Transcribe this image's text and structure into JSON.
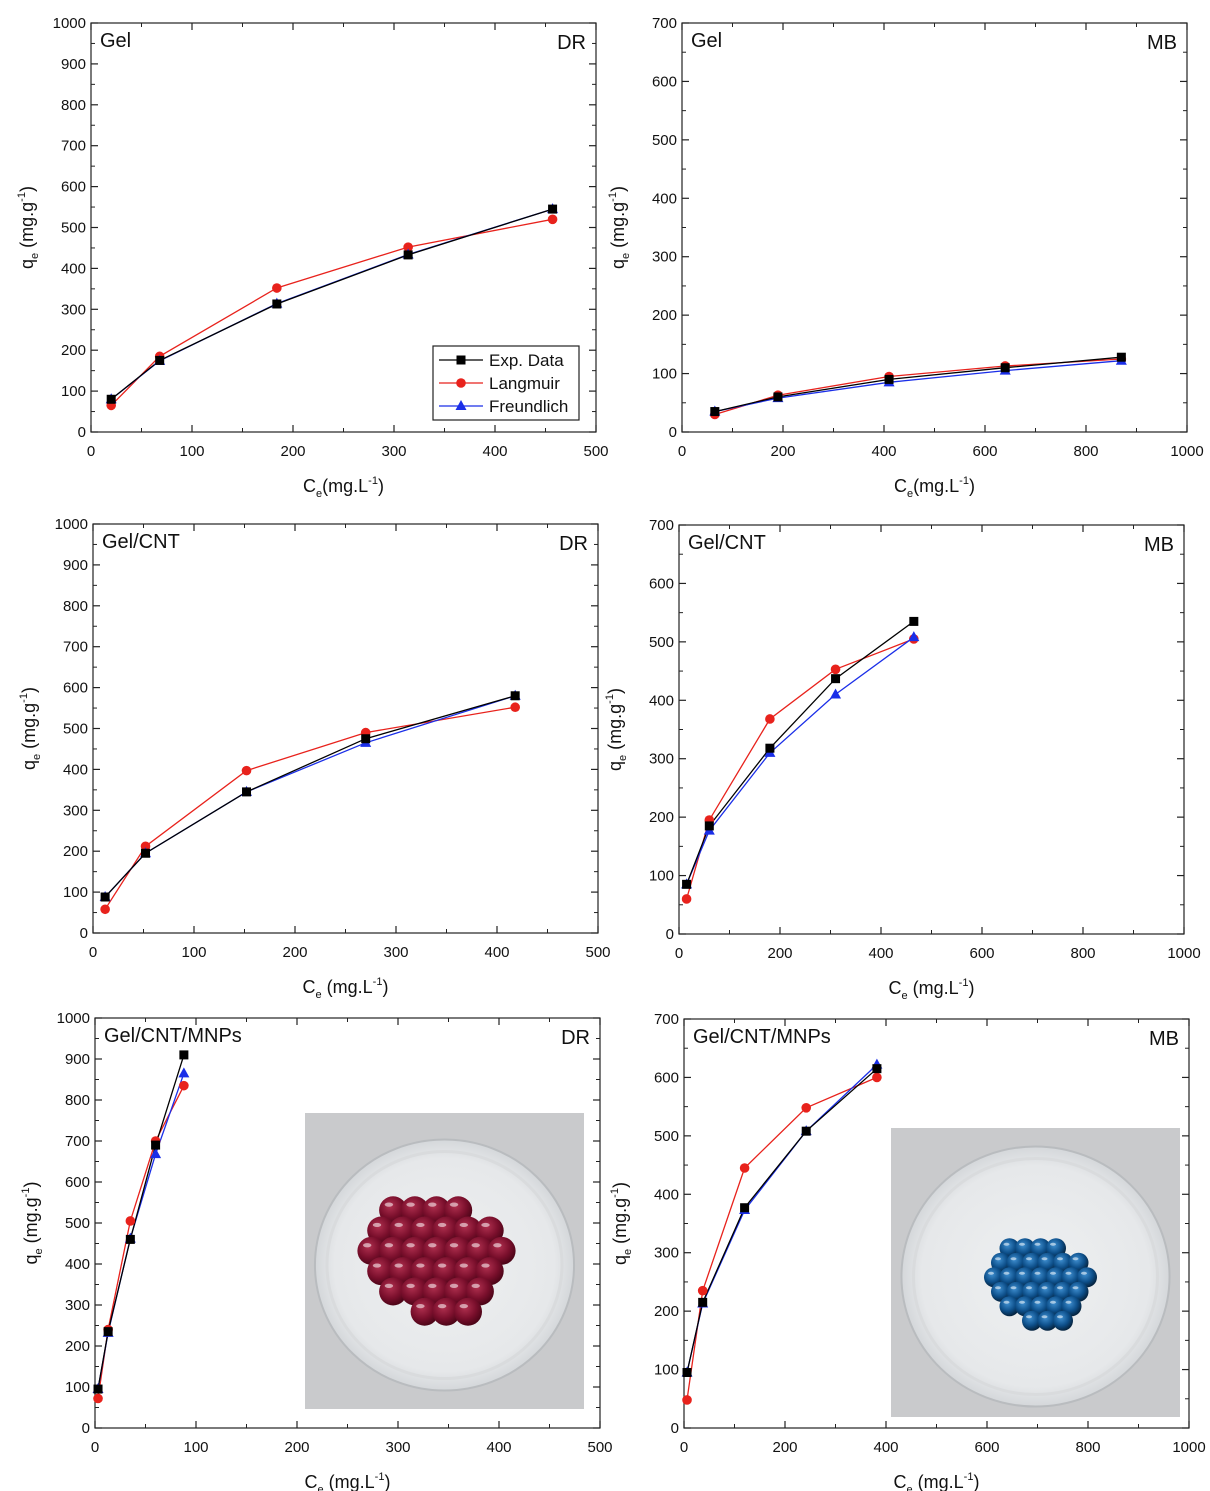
{
  "chart_data": [
    {
      "type": "line",
      "title": "Gel",
      "dye": "DR",
      "xlabel": "C_e(mg.L^-1)",
      "ylabel": "q_e (mg.g^-1)",
      "xlim": [
        0,
        500
      ],
      "ylim": [
        0,
        1000
      ],
      "xticks": [
        0,
        100,
        200,
        300,
        400,
        500
      ],
      "yticks": [
        0,
        100,
        200,
        300,
        400,
        500,
        600,
        700,
        800,
        900,
        1000
      ],
      "legend": "bottom-right",
      "series": [
        {
          "name": "Exp. Data",
          "color": "#000000",
          "marker": "square",
          "x": [
            20,
            68,
            184,
            314,
            457
          ],
          "y": [
            80,
            175,
            313,
            433,
            545
          ]
        },
        {
          "name": "Langmuir",
          "color": "#e8221c",
          "marker": "circle",
          "x": [
            20,
            68,
            184,
            314,
            457
          ],
          "y": [
            65,
            185,
            352,
            452,
            520
          ]
        },
        {
          "name": "Freundlich",
          "color": "#1a2ee8",
          "marker": "triangle",
          "x": [
            20,
            68,
            184,
            314,
            457
          ],
          "y": [
            80,
            174,
            314,
            434,
            545
          ]
        }
      ]
    },
    {
      "type": "line",
      "title": "Gel",
      "dye": "MB",
      "xlabel": "C_e(mg.L^-1)",
      "ylabel": "q_e (mg.g^-1)",
      "xlim": [
        0,
        1000
      ],
      "ylim": [
        0,
        700
      ],
      "xticks": [
        0,
        200,
        400,
        600,
        800,
        1000
      ],
      "yticks": [
        0,
        100,
        200,
        300,
        400,
        500,
        600,
        700
      ],
      "legend": "none",
      "series": [
        {
          "name": "Exp. Data",
          "color": "#000000",
          "marker": "square",
          "x": [
            65,
            190,
            410,
            640,
            870
          ],
          "y": [
            35,
            60,
            90,
            110,
            128
          ]
        },
        {
          "name": "Langmuir",
          "color": "#e8221c",
          "marker": "circle",
          "x": [
            65,
            190,
            410,
            640,
            870
          ],
          "y": [
            30,
            63,
            95,
            113,
            125
          ]
        },
        {
          "name": "Freundlich",
          "color": "#1a2ee8",
          "marker": "triangle",
          "x": [
            65,
            190,
            410,
            640,
            870
          ],
          "y": [
            35,
            58,
            85,
            105,
            122
          ]
        }
      ]
    },
    {
      "type": "line",
      "title": "Gel/CNT",
      "dye": "DR",
      "xlabel": "C_e (mg.L^-1)",
      "ylabel": "q_e (mg.g^-1)",
      "xlim": [
        0,
        500
      ],
      "ylim": [
        0,
        1000
      ],
      "xticks": [
        0,
        100,
        200,
        300,
        400,
        500
      ],
      "yticks": [
        0,
        100,
        200,
        300,
        400,
        500,
        600,
        700,
        800,
        900,
        1000
      ],
      "legend": "none",
      "series": [
        {
          "name": "Exp. Data",
          "color": "#000000",
          "marker": "square",
          "x": [
            12,
            52,
            152,
            270,
            418
          ],
          "y": [
            88,
            195,
            345,
            475,
            580
          ]
        },
        {
          "name": "Langmuir",
          "color": "#e8221c",
          "marker": "circle",
          "x": [
            12,
            52,
            152,
            270,
            418
          ],
          "y": [
            58,
            212,
            397,
            490,
            552
          ]
        },
        {
          "name": "Freundlich",
          "color": "#1a2ee8",
          "marker": "triangle",
          "x": [
            12,
            52,
            152,
            270,
            418
          ],
          "y": [
            88,
            195,
            345,
            465,
            580
          ]
        }
      ]
    },
    {
      "type": "line",
      "title": "Gel/CNT",
      "dye": "MB",
      "xlabel": "C_e (mg.L^-1)",
      "ylabel": "q_e (mg.g^-1)",
      "xlim": [
        0,
        1000
      ],
      "ylim": [
        0,
        700
      ],
      "xticks": [
        0,
        200,
        400,
        600,
        800,
        1000
      ],
      "yticks": [
        0,
        100,
        200,
        300,
        400,
        500,
        600,
        700
      ],
      "legend": "none",
      "series": [
        {
          "name": "Exp. Data",
          "color": "#000000",
          "marker": "square",
          "x": [
            15,
            60,
            180,
            310,
            465
          ],
          "y": [
            85,
            185,
            318,
            437,
            535
          ]
        },
        {
          "name": "Langmuir",
          "color": "#e8221c",
          "marker": "circle",
          "x": [
            15,
            60,
            180,
            310,
            465
          ],
          "y": [
            60,
            195,
            368,
            453,
            505
          ]
        },
        {
          "name": "Freundlich",
          "color": "#1a2ee8",
          "marker": "triangle",
          "x": [
            15,
            60,
            180,
            310,
            465
          ],
          "y": [
            85,
            177,
            310,
            410,
            508
          ]
        }
      ]
    },
    {
      "type": "line",
      "title": "Gel/CNT/MNPs",
      "dye": "DR",
      "xlabel": "C_e (mg.L^-1)",
      "ylabel": "q_e (mg.g^-1)",
      "xlim": [
        0,
        500
      ],
      "ylim": [
        0,
        1000
      ],
      "xticks": [
        0,
        100,
        200,
        300,
        400,
        500
      ],
      "yticks": [
        0,
        100,
        200,
        300,
        400,
        500,
        600,
        700,
        800,
        900,
        1000
      ],
      "legend": "none",
      "inset": "photo of red hydrogel beads in a petri dish",
      "series": [
        {
          "name": "Exp. Data",
          "color": "#000000",
          "marker": "square",
          "x": [
            3,
            13,
            35,
            60,
            88
          ],
          "y": [
            95,
            235,
            460,
            690,
            910
          ]
        },
        {
          "name": "Langmuir",
          "color": "#e8221c",
          "marker": "circle",
          "x": [
            3,
            13,
            35,
            60,
            88
          ],
          "y": [
            72,
            240,
            505,
            700,
            835
          ]
        },
        {
          "name": "Freundlich",
          "color": "#1a2ee8",
          "marker": "triangle",
          "x": [
            3,
            13,
            35,
            60,
            88
          ],
          "y": [
            95,
            232,
            462,
            668,
            865
          ]
        }
      ]
    },
    {
      "type": "line",
      "title": "Gel/CNT/MNPs",
      "dye": "MB",
      "xlabel": "C_e (mg.L^-1)",
      "ylabel": "q_e (mg.g^-1)",
      "xlim": [
        0,
        1000
      ],
      "ylim": [
        0,
        700
      ],
      "xticks": [
        0,
        200,
        400,
        600,
        800,
        1000
      ],
      "yticks": [
        0,
        100,
        200,
        300,
        400,
        500,
        600,
        700
      ],
      "legend": "none",
      "inset": "photo of blue hydrogel beads in a petri dish",
      "series": [
        {
          "name": "Exp. Data",
          "color": "#000000",
          "marker": "square",
          "x": [
            6,
            37,
            120,
            242,
            382
          ],
          "y": [
            95,
            215,
            377,
            508,
            615
          ]
        },
        {
          "name": "Langmuir",
          "color": "#e8221c",
          "marker": "circle",
          "x": [
            6,
            37,
            120,
            242,
            382
          ],
          "y": [
            48,
            235,
            445,
            548,
            600
          ]
        },
        {
          "name": "Freundlich",
          "color": "#1a2ee8",
          "marker": "triangle",
          "x": [
            6,
            37,
            120,
            242,
            382
          ],
          "y": [
            95,
            213,
            373,
            508,
            622
          ]
        }
      ]
    }
  ]
}
